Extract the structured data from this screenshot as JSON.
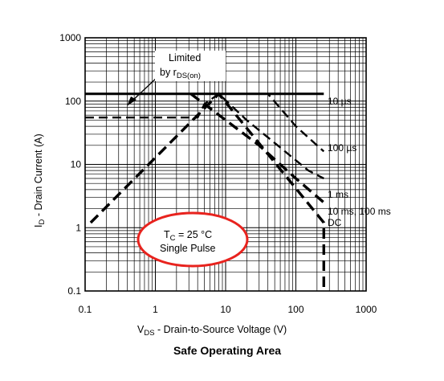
{
  "chart_data": {
    "type": "line",
    "title": "Safe Operating Area",
    "xlabel": {
      "main": "V",
      "sub": "DS",
      "rest": "  -  Drain-to-Source Voltage (V)"
    },
    "ylabel": {
      "main": "I",
      "sub": "D",
      "rest": " - Drain Current (A)"
    },
    "x_scale": "log",
    "y_scale": "log",
    "xlim": [
      0.1,
      1000
    ],
    "ylim": [
      0.1,
      1000
    ],
    "x_ticks": [
      "0.1",
      "1",
      "10",
      "100",
      "1000"
    ],
    "y_ticks": [
      "0.1",
      "1",
      "10",
      "100",
      "1000"
    ],
    "grid": true,
    "series": [
      {
        "name": "10 µs",
        "style": "solid",
        "points": [
          [
            0.1,
            130
          ],
          [
            250,
            130
          ]
        ]
      },
      {
        "name": "100 µs",
        "style": "dashed",
        "points": [
          [
            0.1,
            130
          ],
          [
            40,
            130
          ],
          [
            100,
            40
          ],
          [
            250,
            16
          ]
        ]
      },
      {
        "name": "1 ms",
        "style": "dashed",
        "points": [
          [
            0.1,
            55
          ],
          [
            4,
            55
          ],
          [
            5,
            90
          ],
          [
            8,
            130
          ],
          [
            20,
            50
          ],
          [
            55,
            20
          ],
          [
            150,
            8
          ],
          [
            250,
            6
          ]
        ]
      },
      {
        "name": "10 ms, 100 ms",
        "style": "dashed-thick",
        "points": [
          [
            3.2,
            130
          ],
          [
            30,
            20
          ],
          [
            100,
            6
          ],
          [
            250,
            2.5
          ]
        ]
      },
      {
        "name": "DC",
        "style": "dashed-thick",
        "points": [
          [
            0.12,
            1.2
          ],
          [
            8,
            130
          ],
          [
            250,
            1.2
          ],
          [
            250,
            0.1
          ]
        ]
      }
    ],
    "annotations": {
      "limited": {
        "line1": "Limited",
        "line2": "by r",
        "sub": "DS(on)"
      },
      "conditions": {
        "line1_main": "T",
        "line1_sub": "C",
        "line1_rest": " = 25 °C",
        "line2": "Single Pulse"
      }
    },
    "colors": {
      "highlight_ellipse": "#e8231e",
      "line": "#000000",
      "grid": "#000000"
    }
  }
}
